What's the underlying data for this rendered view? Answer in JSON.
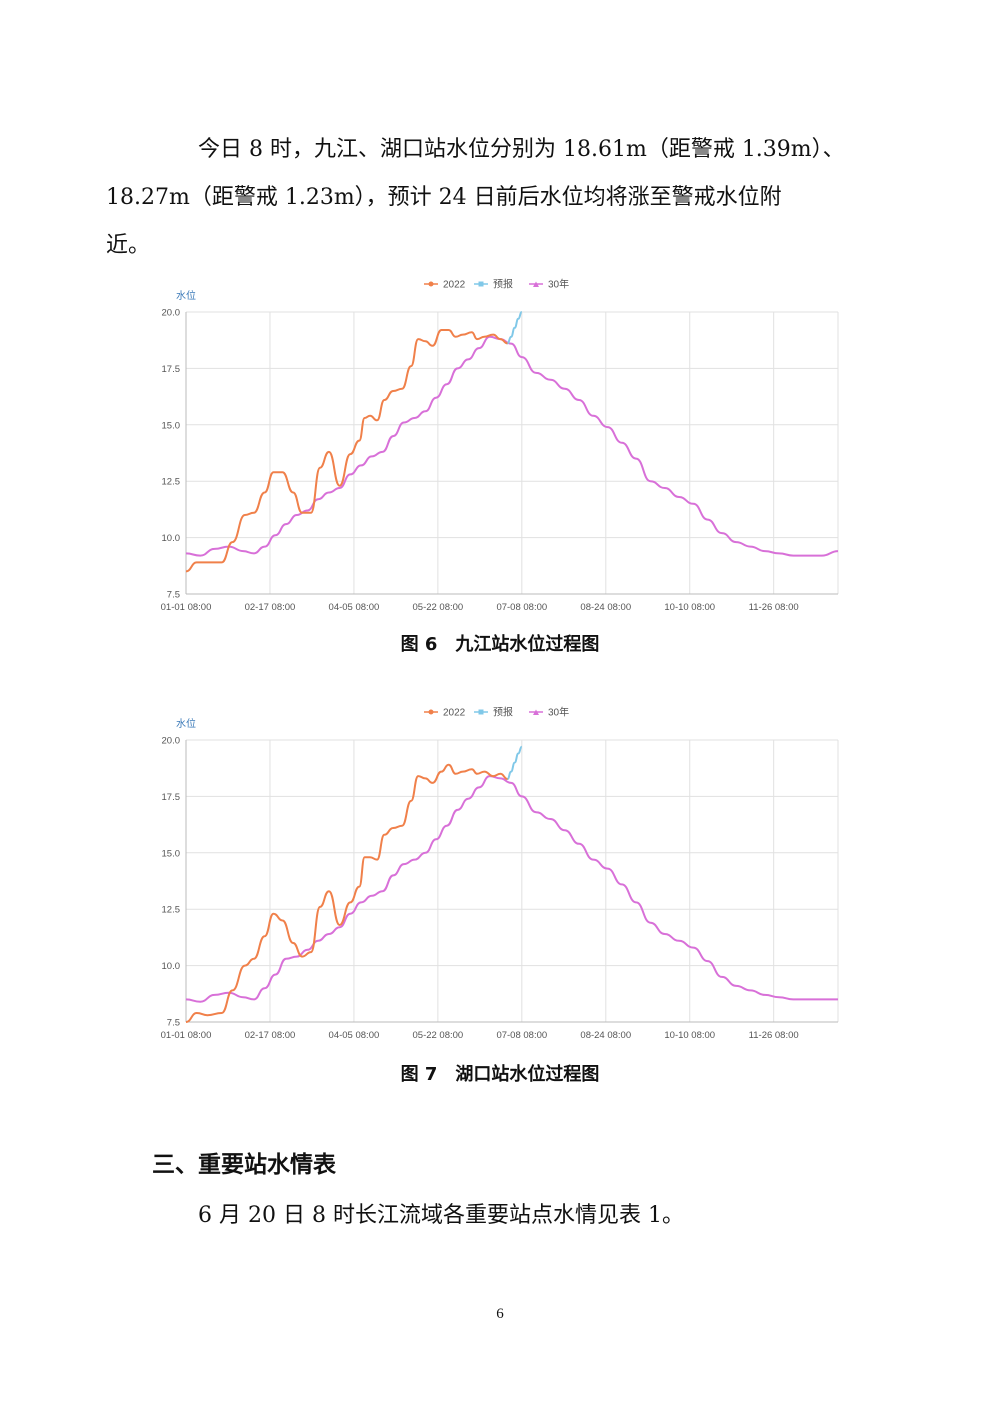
{
  "paragraph1": {
    "line1": "今日 8 时，九江、湖口站水位分别为 18.61m（距警戒 1.39m）、",
    "line2": "18.27m（距警戒 1.23m），预计 24 日前后水位均将涨至警戒水位附",
    "line3": "近。"
  },
  "figure6": {
    "number": "图 6",
    "title": "九江站水位过程图"
  },
  "figure7": {
    "number": "图 7",
    "title": "湖口站水位过程图"
  },
  "section_heading": "三、重要站水情表",
  "paragraph2": "6 月 20 日 8 时长江流域各重要站点水情见表 1。",
  "page_number": "6",
  "chart_data": [
    {
      "type": "line",
      "ylabel": "水位",
      "ylim": [
        7.5,
        20.0
      ],
      "yticks": [
        "20.0",
        "17.5",
        "15.0",
        "12.5",
        "10.0",
        "7.5"
      ],
      "xticks": [
        "01-01 08:00",
        "02-17 08:00",
        "04-05 08:00",
        "05-22 08:00",
        "07-08 08:00",
        "08-24 08:00",
        "10-10 08:00",
        "11-26 08:00"
      ],
      "x_range_days": [
        0,
        365
      ],
      "grid": true,
      "legend_position": "top-center",
      "series": [
        {
          "name": "2022",
          "color": "#f0804a",
          "x": [
            0,
            6,
            12,
            20,
            26,
            33,
            38,
            44,
            49,
            54,
            60,
            65,
            70,
            75,
            80,
            86,
            92,
            97,
            100,
            103,
            107,
            111,
            116,
            121,
            126,
            130,
            134,
            138,
            143,
            147,
            151,
            155,
            160,
            163,
            167,
            172,
            176,
            180
          ],
          "y": [
            8.5,
            8.9,
            8.9,
            8.9,
            9.8,
            11.0,
            11.1,
            12.0,
            12.9,
            12.9,
            12.0,
            11.1,
            11.1,
            13.1,
            13.8,
            12.3,
            13.7,
            14.3,
            15.3,
            15.4,
            15.2,
            16.1,
            16.5,
            16.6,
            17.6,
            18.8,
            18.7,
            18.5,
            19.2,
            19.2,
            18.9,
            19.0,
            19.1,
            18.8,
            18.9,
            19.0,
            18.8,
            18.61
          ]
        },
        {
          "name": "预报",
          "color": "#80c8e8",
          "x": [
            180,
            182,
            184,
            186,
            188
          ],
          "y": [
            18.61,
            18.9,
            19.3,
            19.7,
            20.0
          ]
        },
        {
          "name": "30年",
          "color": "#d870d8",
          "x": [
            0,
            8,
            16,
            24,
            32,
            38,
            44,
            50,
            56,
            62,
            68,
            74,
            80,
            86,
            92,
            98,
            104,
            110,
            116,
            122,
            128,
            134,
            140,
            146,
            152,
            158,
            164,
            170,
            176,
            182,
            188,
            196,
            204,
            212,
            220,
            228,
            236,
            244,
            252,
            260,
            268,
            276,
            284,
            292,
            300,
            308,
            316,
            324,
            332,
            340,
            348,
            356,
            365
          ],
          "y": [
            9.3,
            9.2,
            9.5,
            9.6,
            9.4,
            9.3,
            9.6,
            10.1,
            10.6,
            11.0,
            11.2,
            11.7,
            12.0,
            12.2,
            12.8,
            13.2,
            13.6,
            13.8,
            14.5,
            15.1,
            15.3,
            15.6,
            16.2,
            16.8,
            17.5,
            17.9,
            18.4,
            18.9,
            18.8,
            18.6,
            18.0,
            17.3,
            17.0,
            16.6,
            16.1,
            15.4,
            14.9,
            14.2,
            13.5,
            12.5,
            12.2,
            11.8,
            11.5,
            10.8,
            10.2,
            9.8,
            9.6,
            9.4,
            9.3,
            9.2,
            9.2,
            9.2,
            9.4
          ]
        }
      ]
    },
    {
      "type": "line",
      "ylabel": "水位",
      "ylim": [
        7.5,
        20.0
      ],
      "yticks": [
        "20.0",
        "17.5",
        "15.0",
        "12.5",
        "10.0",
        "7.5"
      ],
      "xticks": [
        "01-01 08:00",
        "02-17 08:00",
        "04-05 08:00",
        "05-22 08:00",
        "07-08 08:00",
        "08-24 08:00",
        "10-10 08:00",
        "11-26 08:00"
      ],
      "x_range_days": [
        0,
        365
      ],
      "grid": true,
      "legend_position": "top-center",
      "series": [
        {
          "name": "2022",
          "color": "#f0804a",
          "x": [
            0,
            6,
            12,
            20,
            26,
            33,
            38,
            44,
            49,
            54,
            60,
            65,
            70,
            75,
            80,
            86,
            92,
            97,
            100,
            103,
            107,
            111,
            116,
            121,
            126,
            130,
            134,
            138,
            143,
            147,
            151,
            155,
            160,
            163,
            167,
            172,
            176,
            180
          ],
          "y": [
            7.5,
            7.9,
            7.8,
            7.9,
            8.9,
            10.0,
            10.3,
            11.3,
            12.3,
            12.0,
            11.0,
            10.4,
            10.6,
            12.6,
            13.3,
            11.8,
            12.8,
            13.5,
            14.8,
            14.8,
            14.7,
            15.8,
            16.1,
            16.2,
            17.3,
            18.4,
            18.3,
            18.1,
            18.6,
            18.9,
            18.5,
            18.6,
            18.7,
            18.5,
            18.6,
            18.4,
            18.5,
            18.27
          ]
        },
        {
          "name": "预报",
          "color": "#80c8e8",
          "x": [
            180,
            182,
            184,
            186,
            188
          ],
          "y": [
            18.27,
            18.6,
            19.0,
            19.4,
            19.7
          ]
        },
        {
          "name": "30年",
          "color": "#d870d8",
          "x": [
            0,
            8,
            16,
            24,
            32,
            38,
            44,
            50,
            56,
            62,
            68,
            74,
            80,
            86,
            92,
            98,
            104,
            110,
            116,
            122,
            128,
            134,
            140,
            146,
            152,
            158,
            164,
            170,
            176,
            182,
            188,
            196,
            204,
            212,
            220,
            228,
            236,
            244,
            252,
            260,
            268,
            276,
            284,
            292,
            300,
            308,
            316,
            324,
            332,
            340,
            348,
            356,
            365
          ],
          "y": [
            8.5,
            8.4,
            8.7,
            8.8,
            8.6,
            8.5,
            9.0,
            9.6,
            10.3,
            10.4,
            10.7,
            11.1,
            11.4,
            11.7,
            12.3,
            12.8,
            13.1,
            13.3,
            14.0,
            14.5,
            14.7,
            15.0,
            15.6,
            16.2,
            16.9,
            17.4,
            17.9,
            18.4,
            18.3,
            18.1,
            17.5,
            16.8,
            16.5,
            16.0,
            15.4,
            14.7,
            14.3,
            13.6,
            12.8,
            11.9,
            11.4,
            11.1,
            10.8,
            10.2,
            9.5,
            9.1,
            8.9,
            8.7,
            8.6,
            8.5,
            8.5,
            8.5,
            8.5
          ]
        }
      ]
    }
  ]
}
